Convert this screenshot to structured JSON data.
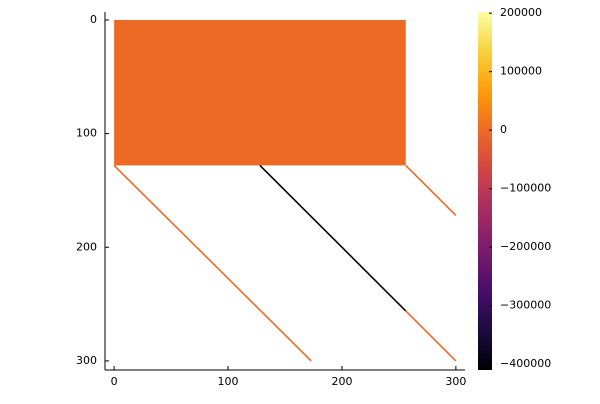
{
  "chart_data": {
    "type": "heatmap",
    "colormap": "inferno",
    "xlim": [
      -8,
      308
    ],
    "ylim": [
      -7,
      308
    ],
    "y_reversed": true,
    "xticks": [
      0,
      100,
      200,
      300
    ],
    "yticks": [
      0,
      100,
      200,
      300
    ],
    "clim": [
      -410000,
      202000
    ],
    "cticks": [
      {
        "value": 200000,
        "label": "200000"
      },
      {
        "value": 100000,
        "label": "100000"
      },
      0,
      {
        "value": -100000,
        "label": "−100000"
      },
      {
        "value": -200000,
        "label": "−200000"
      },
      {
        "value": -300000,
        "label": "−300000"
      },
      {
        "value": -400000,
        "label": "−400000"
      }
    ],
    "regions": [
      {
        "x": [
          0,
          256
        ],
        "y": [
          0,
          128
        ],
        "value": 0
      }
    ],
    "segments": [
      {
        "x": [
          0,
          173
        ],
        "y": [
          128,
          300
        ],
        "value": 0
      },
      {
        "x": [
          256,
          300
        ],
        "y": [
          128,
          172
        ],
        "value": 0
      },
      {
        "x": [
          128,
          256
        ],
        "y": [
          128,
          256
        ],
        "value": -400000
      },
      {
        "x": [
          256,
          300
        ],
        "y": [
          256,
          300
        ],
        "value": 0
      }
    ]
  }
}
